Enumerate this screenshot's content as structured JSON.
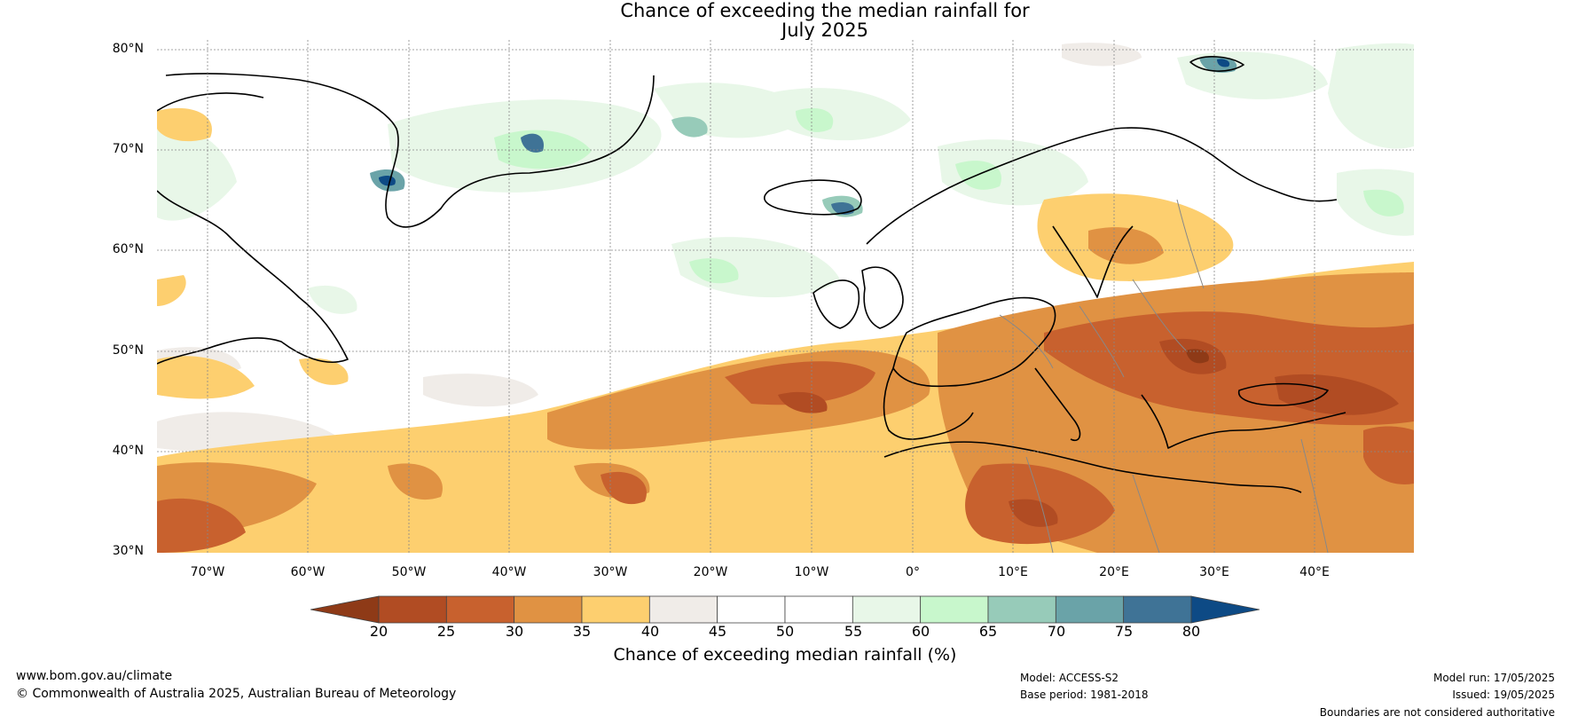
{
  "title": {
    "line1": "Chance of exceeding the median rainfall for",
    "line2": "July 2025"
  },
  "map": {
    "lat_labels": [
      "80°N",
      "70°N",
      "60°N",
      "50°N",
      "40°N",
      "30°N"
    ],
    "lon_labels": [
      "70°W",
      "60°W",
      "50°W",
      "40°W",
      "30°W",
      "20°W",
      "10°W",
      "0°",
      "10°E",
      "20°E",
      "30°E",
      "40°E"
    ],
    "lat_range": [
      30,
      81
    ],
    "lon_range": [
      -75,
      50
    ],
    "ocean_color": "#ffffff",
    "coastline_color": "#000000",
    "border_color": "#888888"
  },
  "colorbar": {
    "ticks": [
      "20",
      "25",
      "30",
      "35",
      "40",
      "45",
      "50",
      "55",
      "60",
      "65",
      "70",
      "75",
      "80"
    ],
    "colors": [
      "#8e3a17",
      "#b14c23",
      "#c8612e",
      "#e09243",
      "#fdcf6f",
      "#f0ece8",
      "#ffffff",
      "#ffffff",
      "#e8f7e8",
      "#c8f7cc",
      "#97cbb9",
      "#6aa3a8",
      "#3f7396",
      "#0d4a85"
    ],
    "label": "Chance of exceeding median rainfall (%)"
  },
  "footer": {
    "url": "www.bom.gov.au/climate",
    "copyright": "© Commonwealth of Australia 2025, Australian Bureau of Meteorology",
    "model": "Model: ACCESS-S2",
    "base_period": "Base period: 1981-2018",
    "model_run": "Model run: 17/05/2025",
    "issued": "Issued: 19/05/2025",
    "disclaimer": "Boundaries are not considered authoritative"
  }
}
